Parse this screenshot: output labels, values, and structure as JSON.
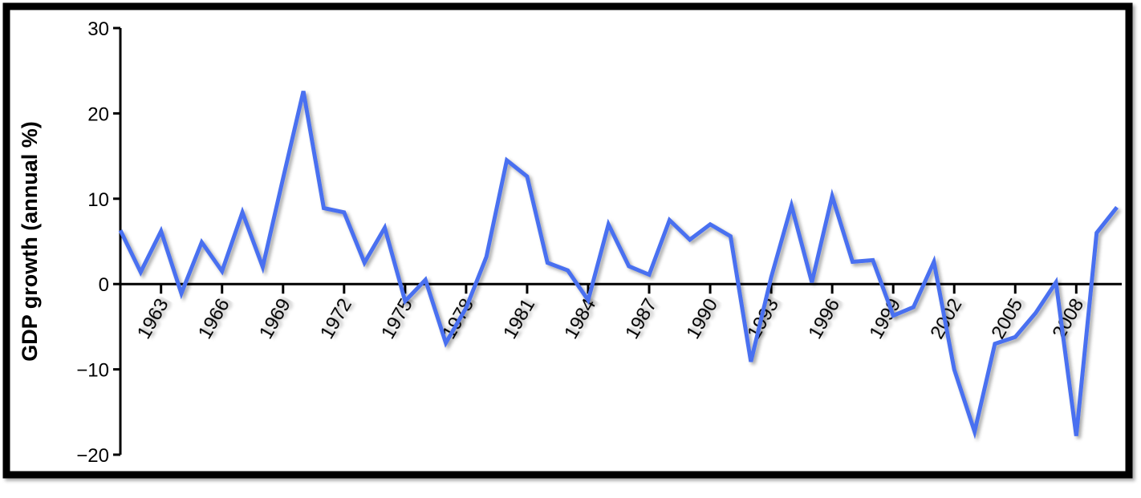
{
  "chart_data": {
    "type": "line",
    "ylabel": "GDP growth (annual %)",
    "x": [
      1961,
      1962,
      1963,
      1964,
      1965,
      1966,
      1967,
      1968,
      1969,
      1970,
      1971,
      1972,
      1973,
      1974,
      1975,
      1976,
      1977,
      1978,
      1979,
      1980,
      1981,
      1982,
      1983,
      1984,
      1985,
      1986,
      1987,
      1988,
      1989,
      1990,
      1991,
      1992,
      1993,
      1994,
      1995,
      1996,
      1997,
      1998,
      1999,
      2000,
      2001,
      2002,
      2003,
      2004,
      2005,
      2006,
      2007,
      2008,
      2009,
      2010
    ],
    "values": [
      6.3,
      1.4,
      6.2,
      -1.1,
      4.9,
      1.5,
      8.4,
      2.0,
      12.4,
      22.6,
      8.9,
      8.4,
      2.5,
      6.6,
      -2.0,
      0.5,
      -6.9,
      -2.8,
      3.2,
      14.5,
      12.6,
      2.5,
      1.6,
      -1.9,
      7.0,
      2.1,
      1.1,
      7.5,
      5.2,
      7.0,
      5.6,
      -9.1,
      0.8,
      9.2,
      0.2,
      10.3,
      2.6,
      2.8,
      -3.7,
      -2.7,
      2.6,
      -10.0,
      -17.3,
      -7.0,
      -6.2,
      -3.4,
      0.2,
      -17.8,
      6.0,
      9.0
    ],
    "color": "#4a6ff0",
    "xlim": [
      1961,
      2010
    ],
    "xticks": [
      1963,
      1966,
      1969,
      1972,
      1975,
      1978,
      1981,
      1984,
      1987,
      1990,
      1993,
      1996,
      1999,
      2002,
      2005,
      2008
    ],
    "ylim": [
      -20,
      30
    ],
    "yticks": [
      {
        "value": -20,
        "label": "−20"
      },
      {
        "value": -10,
        "label": "−10"
      },
      0,
      10,
      20,
      30
    ],
    "grid": false
  }
}
